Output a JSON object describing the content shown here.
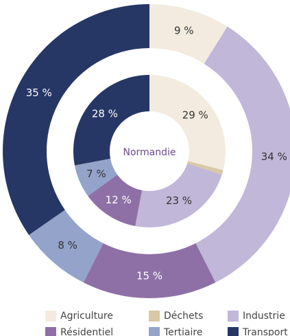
{
  "chart_data": {
    "type": "donut",
    "center_label": "Normandie",
    "categories": [
      "Agriculture",
      "Déchets",
      "Industrie",
      "Résidentiel",
      "Tertiaire",
      "Transport"
    ],
    "colors": [
      "#f3ebdf",
      "#d9c8a6",
      "#c1b7d9",
      "#8e70a7",
      "#93a3ca",
      "#263766"
    ],
    "rings": [
      {
        "values": [
          9,
          0,
          34,
          15,
          8,
          35
        ],
        "value_labels": [
          "9 %",
          null,
          "34 %",
          "15 %",
          "8 %",
          "35 %"
        ]
      },
      {
        "values": [
          29,
          1,
          23,
          12,
          7,
          28
        ],
        "value_labels": [
          "29 %",
          null,
          "23 %",
          "12 %",
          "7 %",
          "28 %"
        ]
      }
    ],
    "legend": "bottom"
  }
}
